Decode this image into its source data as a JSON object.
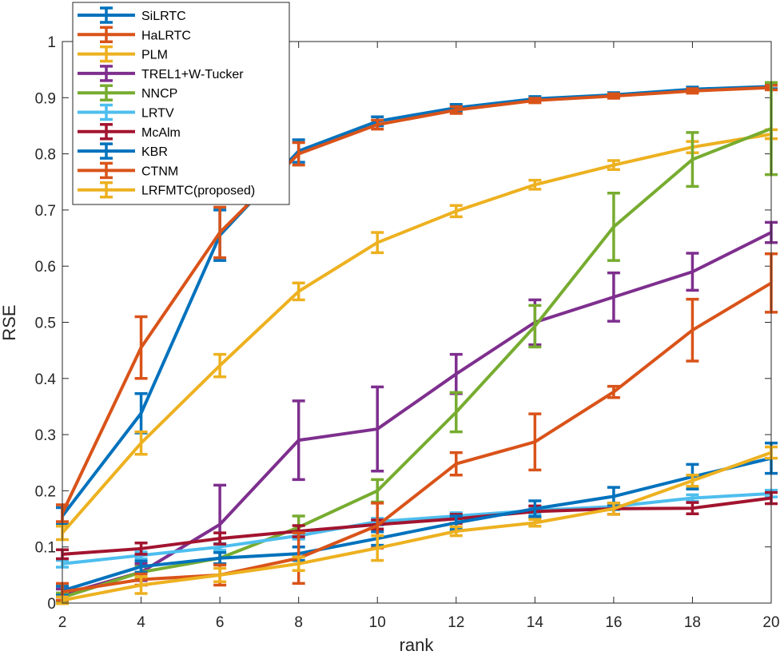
{
  "chart_data": {
    "type": "line",
    "title": "",
    "xlabel": "rank",
    "ylabel": "RSE",
    "xlim": [
      2,
      20
    ],
    "ylim": [
      0,
      1
    ],
    "x": [
      2,
      4,
      6,
      8,
      10,
      12,
      14,
      16,
      18,
      20
    ],
    "xticks": [
      "2",
      "4",
      "6",
      "8",
      "10",
      "12",
      "14",
      "16",
      "18",
      "20"
    ],
    "yticks": [
      "0",
      "0.1",
      "0.2",
      "0.3",
      "0.4",
      "0.5",
      "0.6",
      "0.7",
      "0.8",
      "0.9",
      "1"
    ],
    "legend_position": "top-left",
    "error_bars": true,
    "series": [
      {
        "name": "SiLRTC",
        "color": "#0072BD",
        "values": [
          0.155,
          0.338,
          0.655,
          0.805,
          0.858,
          0.882,
          0.898,
          0.905,
          0.915,
          0.92
        ],
        "errors": [
          0.015,
          0.035,
          0.045,
          0.02,
          0.008,
          0.006,
          0.004,
          0.004,
          0.004,
          0.004
        ]
      },
      {
        "name": "HaLRTC",
        "color": "#D95319",
        "values": [
          0.16,
          0.455,
          0.66,
          0.8,
          0.852,
          0.878,
          0.895,
          0.903,
          0.912,
          0.918
        ],
        "errors": [
          0.015,
          0.055,
          0.045,
          0.02,
          0.008,
          0.006,
          0.004,
          0.004,
          0.004,
          0.004
        ]
      },
      {
        "name": "PLM",
        "color": "#EDB120",
        "values": [
          0.125,
          0.285,
          0.423,
          0.555,
          0.642,
          0.698,
          0.745,
          0.78,
          0.812,
          0.835
        ],
        "errors": [
          0.012,
          0.02,
          0.02,
          0.015,
          0.018,
          0.01,
          0.008,
          0.008,
          0.01,
          0.008
        ]
      },
      {
        "name": "TREL1+W-Tucker",
        "color": "#7E2F8E",
        "values": [
          0.015,
          0.055,
          0.14,
          0.29,
          0.31,
          0.408,
          0.5,
          0.545,
          0.59,
          0.66
        ],
        "errors": [
          0.01,
          0.015,
          0.07,
          0.07,
          0.075,
          0.035,
          0.04,
          0.043,
          0.033,
          0.018
        ]
      },
      {
        "name": "NNCP",
        "color": "#77AC30",
        "values": [
          0.01,
          0.055,
          0.08,
          0.135,
          0.2,
          0.34,
          0.493,
          0.67,
          0.79,
          0.845
        ],
        "errors": [
          0.008,
          0.01,
          0.01,
          0.02,
          0.02,
          0.035,
          0.037,
          0.06,
          0.048,
          0.082
        ]
      },
      {
        "name": "LRTV",
        "color": "#4DBEEE",
        "values": [
          0.07,
          0.085,
          0.1,
          0.12,
          0.145,
          0.155,
          0.165,
          0.172,
          0.187,
          0.195
        ],
        "errors": [
          0.006,
          0.006,
          0.006,
          0.006,
          0.006,
          0.006,
          0.006,
          0.006,
          0.006,
          0.006
        ]
      },
      {
        "name": "McAlm",
        "color": "#A2142F",
        "values": [
          0.087,
          0.097,
          0.115,
          0.128,
          0.14,
          0.15,
          0.163,
          0.168,
          0.169,
          0.187
        ],
        "errors": [
          0.008,
          0.01,
          0.01,
          0.01,
          0.008,
          0.008,
          0.01,
          0.01,
          0.01,
          0.01
        ]
      },
      {
        "name": "KBR",
        "color": "#0072BD",
        "values": [
          0.022,
          0.065,
          0.08,
          0.088,
          0.115,
          0.143,
          0.168,
          0.19,
          0.225,
          0.258
        ],
        "errors": [
          0.008,
          0.01,
          0.01,
          0.012,
          0.012,
          0.012,
          0.014,
          0.016,
          0.022,
          0.027
        ]
      },
      {
        "name": "CTNM",
        "color": "#D95319",
        "values": [
          0.02,
          0.042,
          0.05,
          0.08,
          0.138,
          0.248,
          0.287,
          0.376,
          0.486,
          0.57
        ],
        "errors": [
          0.015,
          0.01,
          0.018,
          0.045,
          0.04,
          0.02,
          0.05,
          0.01,
          0.055,
          0.052
        ]
      },
      {
        "name": "LRFMTC(proposed)",
        "color": "#EDB120",
        "values": [
          0.005,
          0.032,
          0.05,
          0.07,
          0.098,
          0.128,
          0.143,
          0.168,
          0.218,
          0.268
        ],
        "errors": [
          0.006,
          0.015,
          0.012,
          0.012,
          0.022,
          0.008,
          0.006,
          0.01,
          0.01,
          0.01
        ]
      }
    ]
  }
}
